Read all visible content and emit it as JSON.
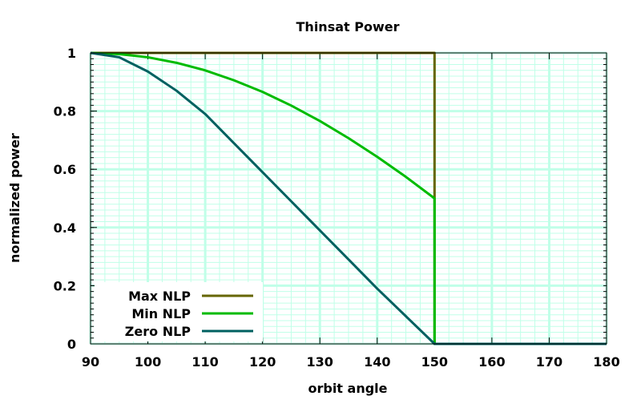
{
  "chart_data": {
    "type": "line",
    "title": "Thinsat Power",
    "xlabel": "orbit angle",
    "ylabel": "normalized power",
    "xlim": [
      90,
      180
    ],
    "ylim": [
      0,
      1
    ],
    "xticks": [
      90,
      100,
      110,
      120,
      130,
      140,
      150,
      160,
      170,
      180
    ],
    "yticks": [
      0,
      0.2,
      0.4,
      0.6,
      0.8,
      1
    ],
    "ytick_labels": [
      "0",
      "0.2",
      "0.4",
      "0.6",
      "0.8",
      "1"
    ],
    "x_minor_step": 2.5,
    "y_minor_step": 0.02,
    "grid": true,
    "legend_position": "bottom-left",
    "grid_color": "#c0ffe8",
    "series": [
      {
        "name": "Max NLP",
        "color": "#666600",
        "x": [
          90,
          150,
          150,
          180
        ],
        "y": [
          1,
          1,
          0,
          0
        ]
      },
      {
        "name": "Min NLP",
        "color": "#00bb00",
        "x": [
          90,
          95,
          100,
          105,
          110,
          115,
          120,
          125,
          130,
          135,
          140,
          145,
          150,
          150,
          180
        ],
        "y": [
          1,
          0.996,
          0.985,
          0.966,
          0.94,
          0.906,
          0.866,
          0.819,
          0.766,
          0.707,
          0.643,
          0.574,
          0.5,
          0,
          0
        ]
      },
      {
        "name": "Zero NLP",
        "color": "#006060",
        "x": [
          90,
          95,
          100,
          105,
          110,
          115,
          120,
          125,
          130,
          135,
          140,
          145,
          150,
          180
        ],
        "y": [
          1,
          0.985,
          0.936,
          0.87,
          0.79,
          0.69,
          0.59,
          0.49,
          0.39,
          0.29,
          0.19,
          0.095,
          0,
          0
        ]
      }
    ]
  }
}
